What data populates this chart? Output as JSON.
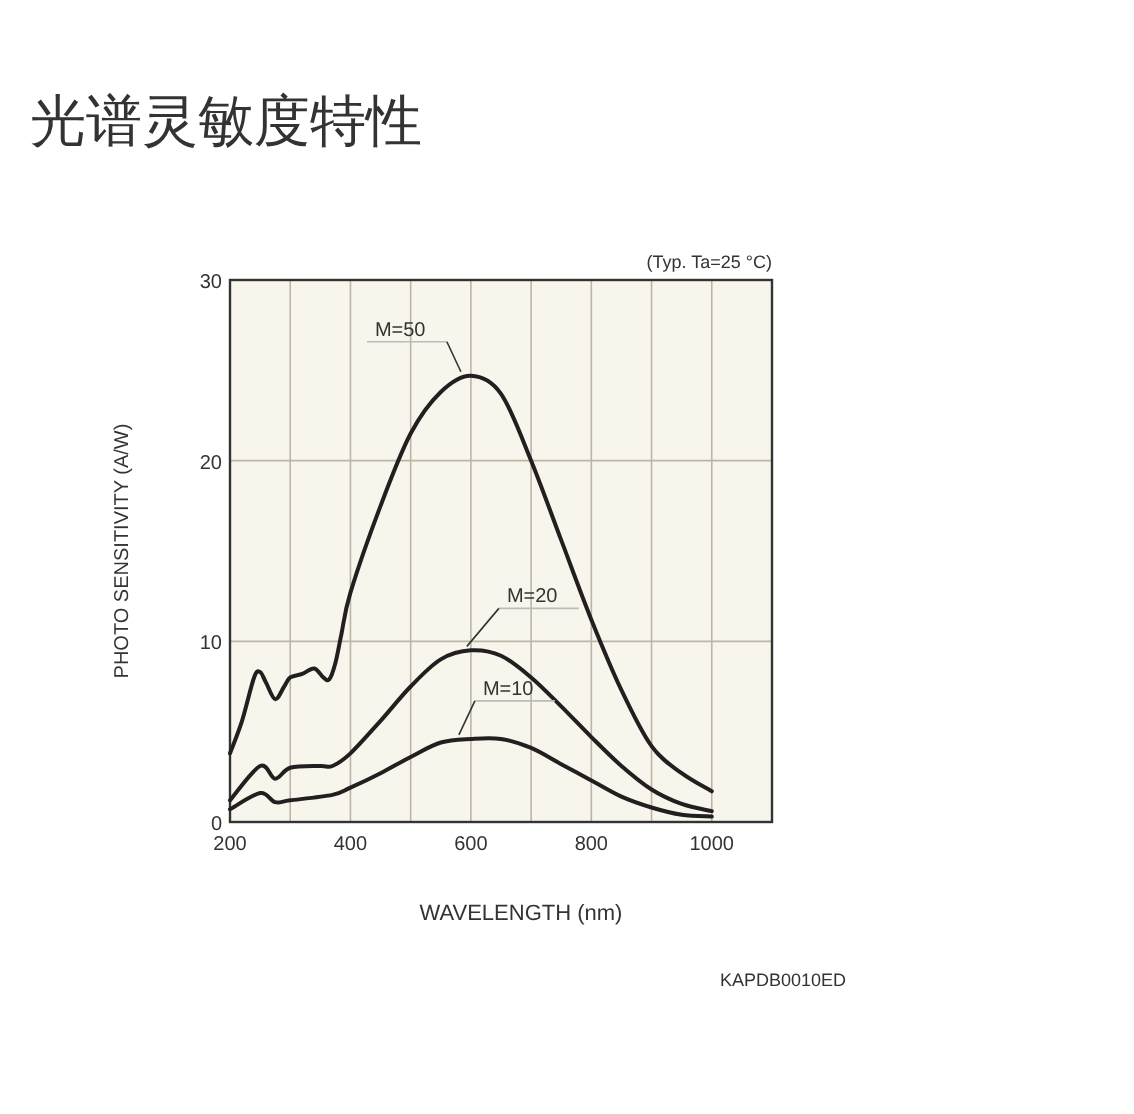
{
  "chart_data": {
    "type": "line",
    "title": "光谱灵敏度特性",
    "xlabel": "WAVELENGTH (nm)",
    "ylabel": "PHOTO SENSITIVITY (A/W)",
    "xlim": [
      200,
      1100
    ],
    "xticks": [
      200,
      400,
      600,
      800,
      1000
    ],
    "ylim": [
      0,
      30
    ],
    "yticks": [
      0,
      10,
      20,
      30
    ],
    "grid": true,
    "annotations": [
      "(Typ. Ta=25 °C)",
      "KAPDB0010ED"
    ],
    "series": [
      {
        "name": "M=50",
        "color": "#231f20",
        "x": [
          200,
          220,
          240,
          250,
          260,
          275,
          290,
          300,
          320,
          340,
          355,
          365,
          375,
          385,
          400,
          450,
          500,
          550,
          600,
          650,
          700,
          750,
          800,
          850,
          900,
          950,
          1000
        ],
        "values": [
          3.8,
          5.6,
          8,
          8.3,
          7.7,
          6.8,
          7.5,
          8,
          8.2,
          8.5,
          8,
          7.9,
          8.8,
          10.4,
          12.7,
          17.5,
          21.5,
          23.8,
          24.7,
          23.7,
          20,
          15.6,
          11.2,
          7.3,
          4.2,
          2.7,
          1.7
        ]
      },
      {
        "name": "M=20",
        "color": "#231f20",
        "x": [
          200,
          250,
          275,
          300,
          350,
          370,
          400,
          450,
          500,
          550,
          600,
          650,
          700,
          750,
          800,
          850,
          900,
          950,
          1000
        ],
        "values": [
          1.2,
          3.1,
          2.4,
          3,
          3.1,
          3.1,
          3.8,
          5.6,
          7.5,
          9,
          9.5,
          9.2,
          8,
          6.4,
          4.7,
          3.1,
          1.8,
          1,
          0.6
        ]
      },
      {
        "name": "M=10",
        "color": "#231f20",
        "x": [
          200,
          250,
          275,
          300,
          370,
          400,
          450,
          500,
          550,
          600,
          650,
          700,
          750,
          800,
          850,
          900,
          950,
          1000
        ],
        "values": [
          0.7,
          1.6,
          1.1,
          1.2,
          1.5,
          1.9,
          2.7,
          3.6,
          4.4,
          4.6,
          4.6,
          4.1,
          3.2,
          2.3,
          1.4,
          0.8,
          0.4,
          0.3
        ]
      }
    ]
  }
}
